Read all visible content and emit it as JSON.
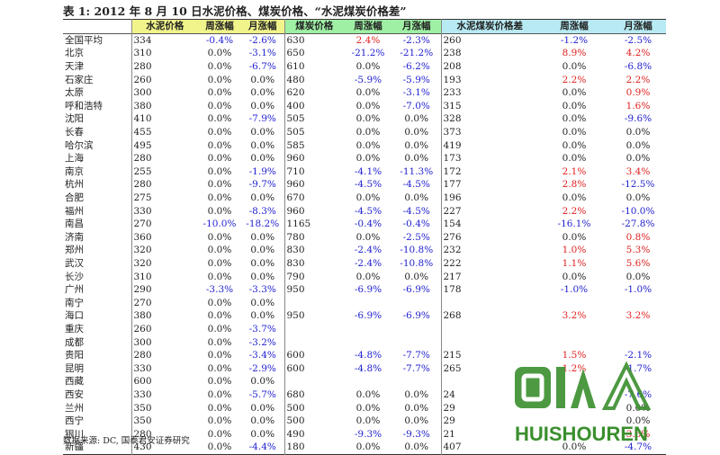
{
  "title": "表 1:  2012 年 8 月 10 日水泥价格、煤炭价格、“水泥煤炭价格差”",
  "headers": [
    "",
    "水泥价格",
    "周涨幅",
    "月涨幅",
    "煤炭价格",
    "周涨幅",
    "月涨幅",
    "水泥煤炭价格差",
    "周涨幅",
    "月涨幅"
  ],
  "colors": {
    "header_cement": "#f1f48a",
    "header_coal": "#9ff0a5",
    "header_diff": "#b7eaf3",
    "up": "#e02020",
    "down": "#2222d0",
    "flat": "#222222"
  },
  "rows": [
    [
      "全国平均",
      "334",
      "-0.4%",
      "-2.6%",
      "630",
      "2.4%",
      "-2.3%",
      "260",
      "-1.2%",
      "-2.5%"
    ],
    [
      "北京",
      "310",
      "0.0%",
      "-3.1%",
      "650",
      "-21.2%",
      "-21.2%",
      "238",
      "8.9%",
      "4.2%"
    ],
    [
      "天津",
      "280",
      "0.0%",
      "-6.7%",
      "610",
      "0.0%",
      "-6.2%",
      "208",
      "0.0%",
      "-6.8%"
    ],
    [
      "石家庄",
      "260",
      "0.0%",
      "0.0%",
      "480",
      "-5.9%",
      "-5.9%",
      "193",
      "2.2%",
      "2.2%"
    ],
    [
      "太原",
      "300",
      "0.0%",
      "0.0%",
      "620",
      "0.0%",
      "-3.1%",
      "233",
      "0.0%",
      "0.9%"
    ],
    [
      "呼和浩特",
      "380",
      "0.0%",
      "0.0%",
      "400",
      "0.0%",
      "-7.0%",
      "315",
      "0.0%",
      "1.6%"
    ],
    [
      "沈阳",
      "410",
      "0.0%",
      "-7.9%",
      "505",
      "0.0%",
      "0.0%",
      "328",
      "0.0%",
      "-9.6%"
    ],
    [
      "长春",
      "455",
      "0.0%",
      "0.0%",
      "505",
      "0.0%",
      "0.0%",
      "373",
      "0.0%",
      "0.0%"
    ],
    [
      "哈尔滨",
      "495",
      "0.0%",
      "0.0%",
      "585",
      "0.0%",
      "0.0%",
      "419",
      "0.0%",
      "0.0%"
    ],
    [
      "上海",
      "280",
      "0.0%",
      "0.0%",
      "960",
      "0.0%",
      "0.0%",
      "173",
      "0.0%",
      "0.0%"
    ],
    [
      "南京",
      "255",
      "0.0%",
      "-1.9%",
      "710",
      "-4.1%",
      "-11.3%",
      "172",
      "2.1%",
      "3.4%"
    ],
    [
      "杭州",
      "280",
      "0.0%",
      "-9.7%",
      "960",
      "-4.5%",
      "-4.5%",
      "177",
      "2.8%",
      "-12.5%"
    ],
    [
      "合肥",
      "275",
      "0.0%",
      "0.0%",
      "670",
      "0.0%",
      "0.0%",
      "196",
      "0.0%",
      "0.0%"
    ],
    [
      "福州",
      "330",
      "0.0%",
      "-8.3%",
      "960",
      "-4.5%",
      "-4.5%",
      "227",
      "2.2%",
      "-10.0%"
    ],
    [
      "南昌",
      "270",
      "-10.0%",
      "-18.2%",
      "1165",
      "-0.4%",
      "-0.4%",
      "154",
      "-16.1%",
      "-27.8%"
    ],
    [
      "济南",
      "360",
      "0.0%",
      "0.0%",
      "780",
      "0.0%",
      "-2.5%",
      "276",
      "0.0%",
      "0.8%"
    ],
    [
      "郑州",
      "320",
      "0.0%",
      "0.0%",
      "830",
      "-2.4%",
      "-10.8%",
      "232",
      "1.0%",
      "5.3%"
    ],
    [
      "武汉",
      "320",
      "0.0%",
      "0.0%",
      "830",
      "-2.4%",
      "-10.8%",
      "222",
      "1.1%",
      "5.6%"
    ],
    [
      "长沙",
      "310",
      "0.0%",
      "0.0%",
      "790",
      "0.0%",
      "0.0%",
      "217",
      "0.0%",
      "0.0%"
    ],
    [
      "广州",
      "290",
      "-3.3%",
      "-3.3%",
      "950",
      "-6.9%",
      "-6.9%",
      "178",
      "-1.0%",
      "-1.0%"
    ],
    [
      "南宁",
      "270",
      "0.0%",
      "0.0%",
      "",
      "",
      "",
      "",
      "",
      ""
    ],
    [
      "海口",
      "380",
      "0.0%",
      "0.0%",
      "950",
      "-6.9%",
      "-6.9%",
      "268",
      "3.2%",
      "3.2%"
    ],
    [
      "重庆",
      "260",
      "0.0%",
      "-3.7%",
      "",
      "",
      "",
      "",
      "",
      ""
    ],
    [
      "成都",
      "300",
      "0.0%",
      "-3.2%",
      "",
      "",
      "",
      "",
      "",
      ""
    ],
    [
      "贵阳",
      "280",
      "0.0%",
      "-3.4%",
      "600",
      "-4.8%",
      "-7.7%",
      "215",
      "1.5%",
      "-2.1%"
    ],
    [
      "昆明",
      "330",
      "0.0%",
      "-2.9%",
      "600",
      "-4.8%",
      "-7.7%",
      "265",
      "1.2%",
      "-1.7%"
    ],
    [
      "西藏",
      "600",
      "0.0%",
      "0.0%",
      "",
      "",
      "",
      "",
      "",
      ""
    ],
    [
      "西安",
      "330",
      "0.0%",
      "-5.7%",
      "680",
      "0.0%",
      "0.0%",
      "24",
      "",
      "-7.6%"
    ],
    [
      "兰州",
      "350",
      "0.0%",
      "0.0%",
      "500",
      "0.0%",
      "0.0%",
      "29",
      "",
      "0.0%"
    ],
    [
      "西宁",
      "350",
      "0.0%",
      "0.0%",
      "500",
      "0.0%",
      "0.0%",
      "29",
      "",
      "0.0%"
    ],
    [
      "银川",
      "280",
      "0.0%",
      "0.0%",
      "490",
      "-9.3%",
      "-9.3%",
      "21",
      "",
      "3.6%"
    ],
    [
      "新疆",
      "430",
      "0.0%",
      "-4.4%",
      "180",
      "0.0%",
      "0.0%",
      "407",
      "0.0%",
      "-4.7%"
    ]
  ],
  "source": "数据来源:  DC,  国泰君安证券研究",
  "watermark": {
    "text": "HUISHOUREN",
    "icon_name": "recycle-logo",
    "color": "#3a8f2e"
  }
}
